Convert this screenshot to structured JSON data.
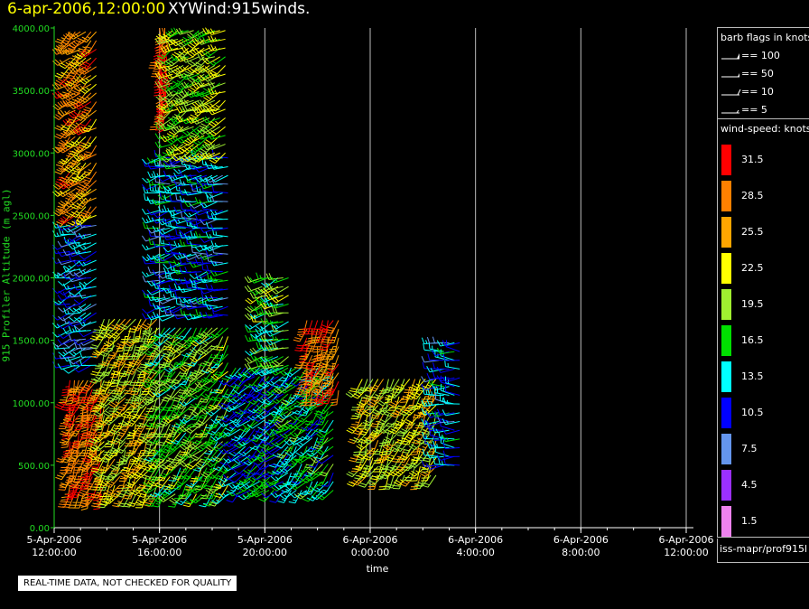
{
  "header": {
    "datetime": "6-apr-2006,12:00:00",
    "plot_name": "XYWind:915winds."
  },
  "footer_note": "REAL-TIME DATA, NOT CHECKED FOR QUALITY",
  "chart_data": {
    "type": "scatter",
    "subtype": "wind-barb time-height plot",
    "xlabel": "time",
    "ylabel": "915 Profiler Altitude (m agl)",
    "ylim": [
      0,
      4000
    ],
    "y_ticks": [
      "0.00",
      "500.00",
      "1000.00",
      "1500.00",
      "2000.00",
      "2500.00",
      "3000.00",
      "3500.00",
      "4000.00"
    ],
    "x_ticks": [
      {
        "date": "5-Apr-2006",
        "time": "12:00:00"
      },
      {
        "date": "5-Apr-2006",
        "time": "16:00:00"
      },
      {
        "date": "5-Apr-2006",
        "time": "20:00:00"
      },
      {
        "date": "6-Apr-2006",
        "time": "0:00:00"
      },
      {
        "date": "6-Apr-2006",
        "time": "4:00:00"
      },
      {
        "date": "6-Apr-2006",
        "time": "8:00:00"
      },
      {
        "date": "6-Apr-2006",
        "time": "12:00:00"
      }
    ],
    "xlim_hours": [
      0,
      24
    ],
    "grid": "vertical lines at x ticks",
    "barb_flags": {
      "title": "barb flags in knots",
      "entries": [
        "== 100",
        "== 50",
        "== 10",
        "== 5"
      ]
    },
    "wind_speed_legend": {
      "title": "wind-speed: knots",
      "bins": [
        {
          "label": "31.5",
          "color": "#ff0000"
        },
        {
          "label": "28.5",
          "color": "#ff8000"
        },
        {
          "label": "25.5",
          "color": "#ffa500"
        },
        {
          "label": "22.5",
          "color": "#ffff00"
        },
        {
          "label": "19.5",
          "color": "#a0f030"
        },
        {
          "label": "16.5",
          "color": "#00e000"
        },
        {
          "label": "13.5",
          "color": "#00ffff"
        },
        {
          "label": "10.5",
          "color": "#0000ff"
        },
        {
          "label": "7.5",
          "color": "#6495ed"
        },
        {
          "label": "4.5",
          "color": "#9b30ff"
        },
        {
          "label": "1.5",
          "color": "#ee82ee"
        }
      ]
    },
    "source": "iss-mapr/prof915l",
    "profiles": [
      {
        "start_h": 0.6,
        "end_h": 1.9,
        "step_h": 0.17,
        "bottom_m": 270,
        "top_m": 1200,
        "speed": 29,
        "dir": 200
      },
      {
        "start_h": 0.6,
        "end_h": 1.6,
        "step_h": 0.2,
        "bottom_m": 2500,
        "top_m": 4000,
        "speed": 27,
        "dir": 230
      },
      {
        "start_h": 0.6,
        "end_h": 1.6,
        "step_h": 0.2,
        "bottom_m": 1300,
        "top_m": 2450,
        "speed": 11,
        "dir": 250
      },
      {
        "start_h": 1.9,
        "end_h": 3.9,
        "step_h": 0.2,
        "bottom_m": 270,
        "top_m": 1700,
        "speed": 22,
        "dir": 210
      },
      {
        "start_h": 4.0,
        "end_h": 4.2,
        "step_h": 0.1,
        "bottom_m": 3300,
        "top_m": 4000,
        "speed": 31,
        "dir": 180
      },
      {
        "start_h": 4.0,
        "end_h": 6.7,
        "step_h": 0.2,
        "bottom_m": 270,
        "top_m": 1600,
        "speed": 18,
        "dir": 220
      },
      {
        "start_h": 4.0,
        "end_h": 6.7,
        "step_h": 0.2,
        "bottom_m": 1700,
        "top_m": 3000,
        "speed": 12,
        "dir": 260
      },
      {
        "start_h": 4.5,
        "end_h": 6.5,
        "step_h": 0.2,
        "bottom_m": 3000,
        "top_m": 4000,
        "speed": 20,
        "dir": 240
      },
      {
        "start_h": 6.9,
        "end_h": 9.0,
        "step_h": 0.18,
        "bottom_m": 300,
        "top_m": 1300,
        "speed": 13,
        "dir": 230
      },
      {
        "start_h": 7.9,
        "end_h": 8.9,
        "step_h": 0.2,
        "bottom_m": 1300,
        "top_m": 2000,
        "speed": 18,
        "dir": 250
      },
      {
        "start_h": 9.0,
        "end_h": 10.6,
        "step_h": 0.2,
        "bottom_m": 300,
        "top_m": 1300,
        "speed": 15,
        "dir": 220
      },
      {
        "start_h": 9.6,
        "end_h": 10.8,
        "step_h": 0.2,
        "bottom_m": 1100,
        "top_m": 1700,
        "speed": 28,
        "dir": 200
      },
      {
        "start_h": 11.7,
        "end_h": 14.5,
        "step_h": 0.2,
        "bottom_m": 420,
        "top_m": 1200,
        "speed": 22,
        "dir": 210
      },
      {
        "start_h": 14.6,
        "end_h": 15.4,
        "step_h": 0.2,
        "bottom_m": 500,
        "top_m": 1500,
        "speed": 12,
        "dir": 270
      }
    ]
  }
}
